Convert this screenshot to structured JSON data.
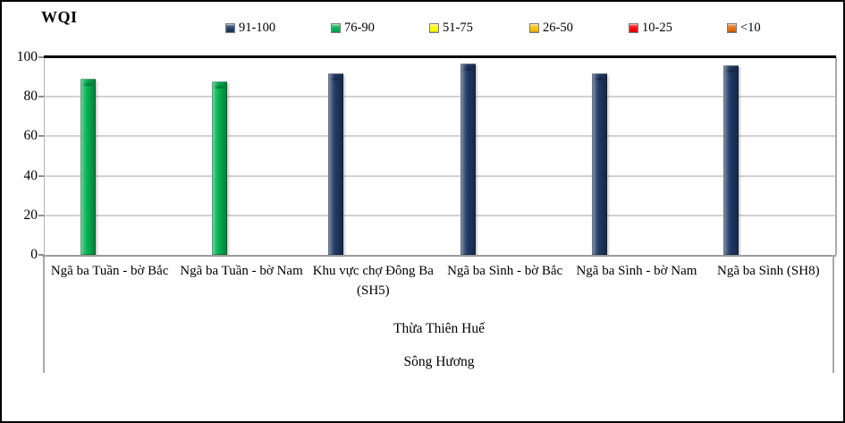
{
  "chart_data": {
    "type": "bar",
    "title": "WQI",
    "xlabel": "",
    "ylabel": "",
    "ylim": [
      0,
      100
    ],
    "yticks": [
      0,
      20,
      40,
      60,
      80,
      100
    ],
    "grid": true,
    "legend_position": "top",
    "categories": [
      "Ngã ba Tuần - bờ Bắc",
      "Ngã ba Tuần - bờ Nam",
      "Khu vực chợ Đông Ba (SH5)",
      "Ngã ba Sình - bờ Bắc",
      "Ngã ba Sình - bờ Nam",
      "Ngã ba Sình (SH8)"
    ],
    "group_labels": [
      "Thừa Thiên Huế",
      "Sông Hương"
    ],
    "series": [
      {
        "name": "91-100",
        "color": "#1F3864",
        "values": [
          null,
          null,
          92,
          97,
          92,
          96
        ]
      },
      {
        "name": "76-90",
        "color": "#00B050",
        "values": [
          89,
          88,
          null,
          null,
          null,
          null
        ]
      },
      {
        "name": "51-75",
        "color": "#FFFF00",
        "values": [
          null,
          null,
          null,
          null,
          null,
          null
        ]
      },
      {
        "name": "26-50",
        "color": "#FFC000",
        "values": [
          null,
          null,
          null,
          null,
          null,
          null
        ]
      },
      {
        "name": "10-25",
        "color": "#FF0000",
        "values": [
          null,
          null,
          null,
          null,
          null,
          null
        ]
      },
      {
        "name": "<10",
        "color": "#E26B0A",
        "values": [
          null,
          null,
          null,
          null,
          null,
          null
        ]
      }
    ]
  }
}
